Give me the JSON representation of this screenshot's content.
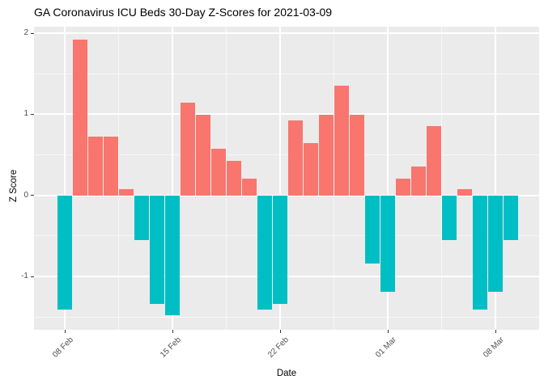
{
  "chart_data": {
    "type": "bar",
    "title": "GA Coronavirus ICU Beds 30-Day Z-Scores for 2021-03-09",
    "xlabel": "Date",
    "ylabel": "Z Score",
    "legend": "none",
    "grid": true,
    "panel_bg_color": "#EBEBEB",
    "grid_color": "#FFFFFF",
    "positive_bar_color": "#F8766D",
    "negative_bar_color": "#00BFC4",
    "axis_text_color": "#4D4D4D",
    "ylim": [
      -1.66,
      2.09
    ],
    "categories": [
      "2021-02-08",
      "2021-02-09",
      "2021-02-10",
      "2021-02-11",
      "2021-02-12",
      "2021-02-13",
      "2021-02-14",
      "2021-02-15",
      "2021-02-16",
      "2021-02-17",
      "2021-02-18",
      "2021-02-19",
      "2021-02-20",
      "2021-02-21",
      "2021-02-22",
      "2021-02-23",
      "2021-02-24",
      "2021-02-25",
      "2021-02-26",
      "2021-02-27",
      "2021-02-28",
      "2021-03-01",
      "2021-03-02",
      "2021-03-03",
      "2021-03-04",
      "2021-03-05",
      "2021-03-06",
      "2021-03-07",
      "2021-03-08",
      "2021-03-09"
    ],
    "values": [
      -1.41,
      1.92,
      0.72,
      0.72,
      0.08,
      -0.55,
      -1.34,
      -1.48,
      1.14,
      0.99,
      0.58,
      0.43,
      0.21,
      -1.41,
      -1.34,
      0.92,
      0.65,
      0.99,
      1.35,
      0.99,
      -0.84,
      -1.19,
      0.21,
      0.36,
      0.85,
      -0.55,
      0.08,
      -1.41,
      -1.19,
      -0.55
    ],
    "x_ticks": [
      {
        "index": 0,
        "label": "08 Feb"
      },
      {
        "index": 7,
        "label": "15 Feb"
      },
      {
        "index": 14,
        "label": "22 Feb"
      },
      {
        "index": 21,
        "label": "01 Mar"
      },
      {
        "index": 28,
        "label": "08 Mar"
      }
    ],
    "x_minor_tick_indices": [
      3.5,
      10.5,
      17.5,
      24.5
    ],
    "y_ticks": [
      {
        "value": 2,
        "label": "2"
      },
      {
        "value": 1,
        "label": "1"
      },
      {
        "value": 0,
        "label": "0"
      },
      {
        "value": -1,
        "label": "-1"
      }
    ],
    "y_minor_ticks": [
      1.5,
      0.5,
      -0.5,
      -1.5
    ]
  }
}
